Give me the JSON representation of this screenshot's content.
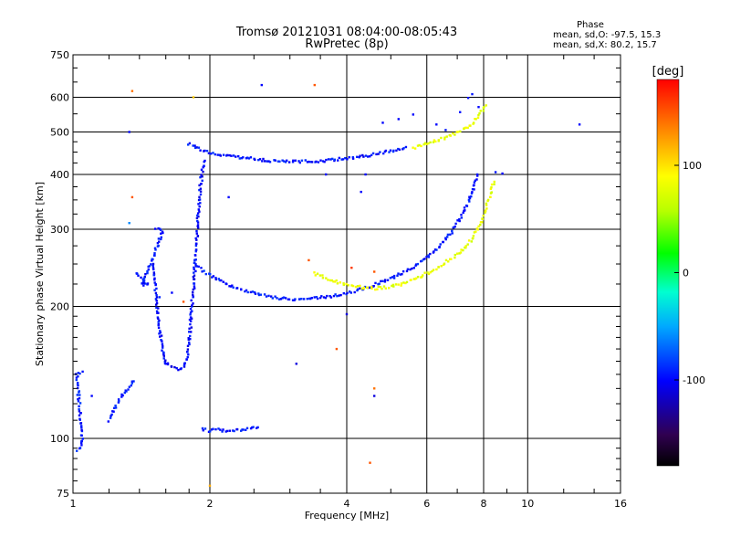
{
  "chart_data": {
    "type": "scatter",
    "title": "Tromsø 20121031 08:04:00-08:05:43",
    "subtitle": "RwPretec (8p)",
    "xlabel": "Frequency [MHz]",
    "ylabel": "Stationary phase Virtual Height [km]",
    "x_scale": "log",
    "y_scale": "log",
    "xlim": [
      1,
      16
    ],
    "ylim": [
      75,
      750
    ],
    "x_ticks": [
      1,
      2,
      4,
      6,
      8,
      10,
      16
    ],
    "y_ticks": [
      75,
      100,
      200,
      300,
      400,
      500,
      600,
      750
    ],
    "grid": true,
    "phase_stats": {
      "heading": "Phase",
      "o_mode": "mean, sd,O: -97.5, 15.3",
      "x_mode": "mean, sd,X:  80.2, 15.7"
    },
    "colorbar": {
      "label": "[deg]",
      "ticks": [
        100,
        0,
        -100
      ],
      "range": [
        -180,
        180
      ]
    },
    "traces": [
      {
        "mode": "O",
        "phase": -95,
        "points": [
          [
            1.8,
            470
          ],
          [
            1.88,
            460
          ],
          [
            1.98,
            450
          ],
          [
            2.1,
            442
          ],
          [
            2.3,
            438
          ],
          [
            2.5,
            434
          ],
          [
            2.7,
            430
          ],
          [
            3.0,
            428
          ],
          [
            3.3,
            428
          ],
          [
            3.6,
            430
          ],
          [
            3.9,
            434
          ],
          [
            4.2,
            438
          ],
          [
            4.5,
            442
          ],
          [
            4.8,
            448
          ],
          [
            5.1,
            455
          ],
          [
            5.4,
            462
          ]
        ]
      },
      {
        "mode": "X",
        "phase": 80,
        "points": [
          [
            5.6,
            460
          ],
          [
            6.0,
            470
          ],
          [
            6.4,
            480
          ],
          [
            6.8,
            492
          ],
          [
            7.2,
            505
          ],
          [
            7.5,
            520
          ],
          [
            7.8,
            545
          ],
          [
            8.1,
            575
          ]
        ]
      },
      {
        "mode": "O",
        "phase": -95,
        "points": [
          [
            1.85,
            250
          ],
          [
            1.95,
            240
          ],
          [
            2.05,
            232
          ],
          [
            2.2,
            224
          ],
          [
            2.4,
            217
          ],
          [
            2.6,
            212
          ],
          [
            2.8,
            209
          ],
          [
            3.0,
            208
          ],
          [
            3.3,
            208
          ],
          [
            3.6,
            210
          ],
          [
            3.9,
            213
          ],
          [
            4.2,
            217
          ],
          [
            4.5,
            222
          ],
          [
            4.8,
            228
          ],
          [
            5.2,
            236
          ],
          [
            5.6,
            246
          ],
          [
            6.0,
            258
          ],
          [
            6.4,
            274
          ],
          [
            6.8,
            295
          ],
          [
            7.1,
            318
          ],
          [
            7.4,
            345
          ],
          [
            7.6,
            372
          ],
          [
            7.75,
            400
          ]
        ]
      },
      {
        "mode": "X",
        "phase": 80,
        "points": [
          [
            3.4,
            238
          ],
          [
            3.6,
            232
          ],
          [
            3.8,
            228
          ],
          [
            4.0,
            224
          ],
          [
            4.3,
            221
          ],
          [
            4.6,
            220
          ],
          [
            4.9,
            221
          ],
          [
            5.2,
            224
          ],
          [
            5.5,
            229
          ],
          [
            5.8,
            234
          ],
          [
            6.1,
            240
          ],
          [
            6.4,
            247
          ],
          [
            6.7,
            255
          ],
          [
            7.0,
            263
          ],
          [
            7.3,
            274
          ],
          [
            7.6,
            288
          ],
          [
            7.9,
            310
          ],
          [
            8.1,
            335
          ],
          [
            8.3,
            365
          ],
          [
            8.45,
            385
          ]
        ]
      },
      {
        "mode": "O",
        "phase": -100,
        "points": [
          [
            1.6,
            150
          ],
          [
            1.65,
            145
          ],
          [
            1.7,
            143
          ],
          [
            1.75,
            145
          ],
          [
            1.78,
            152
          ],
          [
            1.8,
            165
          ],
          [
            1.82,
            190
          ],
          [
            1.84,
            220
          ],
          [
            1.86,
            260
          ],
          [
            1.88,
            310
          ],
          [
            1.9,
            360
          ],
          [
            1.92,
            400
          ],
          [
            1.95,
            430
          ]
        ]
      },
      {
        "mode": "O",
        "phase": -100,
        "points": [
          [
            1.5,
            250
          ],
          [
            1.52,
            220
          ],
          [
            1.54,
            190
          ],
          [
            1.56,
            170
          ],
          [
            1.58,
            155
          ],
          [
            1.6,
            148
          ]
        ]
      },
      {
        "mode": "O",
        "phase": -90,
        "points": [
          [
            1.2,
            110
          ],
          [
            1.24,
            118
          ],
          [
            1.28,
            125
          ],
          [
            1.32,
            130
          ],
          [
            1.36,
            135
          ]
        ]
      },
      {
        "mode": "O",
        "phase": -95,
        "points": [
          [
            1.92,
            105
          ],
          [
            2.0,
            104
          ],
          [
            2.08,
            105
          ],
          [
            2.15,
            104
          ],
          [
            2.45,
            105
          ],
          [
            2.55,
            106
          ]
        ]
      },
      {
        "mode": "O",
        "phase": -95,
        "points": [
          [
            1.02,
            94
          ],
          [
            1.05,
            96
          ],
          [
            1.02,
            140
          ],
          [
            1.05,
            142
          ]
        ]
      },
      {
        "mode": "O",
        "phase": -95,
        "points": [
          [
            1.52,
            300
          ],
          [
            1.58,
            298
          ],
          [
            1.42,
            225
          ],
          [
            1.46,
            224
          ],
          [
            1.38,
            238
          ]
        ]
      }
    ],
    "scatter_points": [
      [
        1.35,
        620,
        140
      ],
      [
        1.33,
        500,
        -100
      ],
      [
        1.35,
        355,
        150
      ],
      [
        1.33,
        310,
        -60
      ],
      [
        1.84,
        600,
        110
      ],
      [
        2.6,
        640,
        -100
      ],
      [
        3.4,
        640,
        150
      ],
      [
        2.2,
        355,
        -100
      ],
      [
        3.6,
        400,
        -100
      ],
      [
        4.4,
        400,
        -100
      ],
      [
        4.3,
        365,
        -100
      ],
      [
        3.8,
        160,
        150
      ],
      [
        4.0,
        192,
        -110
      ],
      [
        3.1,
        148,
        -110
      ],
      [
        4.6,
        130,
        140
      ],
      [
        4.6,
        125,
        -110
      ],
      [
        4.5,
        88,
        150
      ],
      [
        2.0,
        78,
        120
      ],
      [
        1.1,
        125,
        -100
      ],
      [
        3.3,
        255,
        150
      ],
      [
        4.1,
        245,
        160
      ],
      [
        4.6,
        240,
        150
      ],
      [
        13.0,
        520,
        -100
      ],
      [
        8.5,
        405,
        -95
      ],
      [
        8.8,
        402,
        -100
      ],
      [
        7.4,
        598,
        -95
      ],
      [
        7.55,
        610,
        -95
      ],
      [
        7.8,
        570,
        -100
      ],
      [
        7.1,
        555,
        -95
      ],
      [
        4.8,
        525,
        -100
      ],
      [
        5.2,
        535,
        -100
      ],
      [
        5.6,
        548,
        -100
      ],
      [
        6.3,
        520,
        -100
      ],
      [
        6.6,
        505,
        -95
      ],
      [
        1.55,
        210,
        -90
      ],
      [
        1.65,
        215,
        -100
      ],
      [
        1.75,
        205,
        150
      ]
    ]
  }
}
